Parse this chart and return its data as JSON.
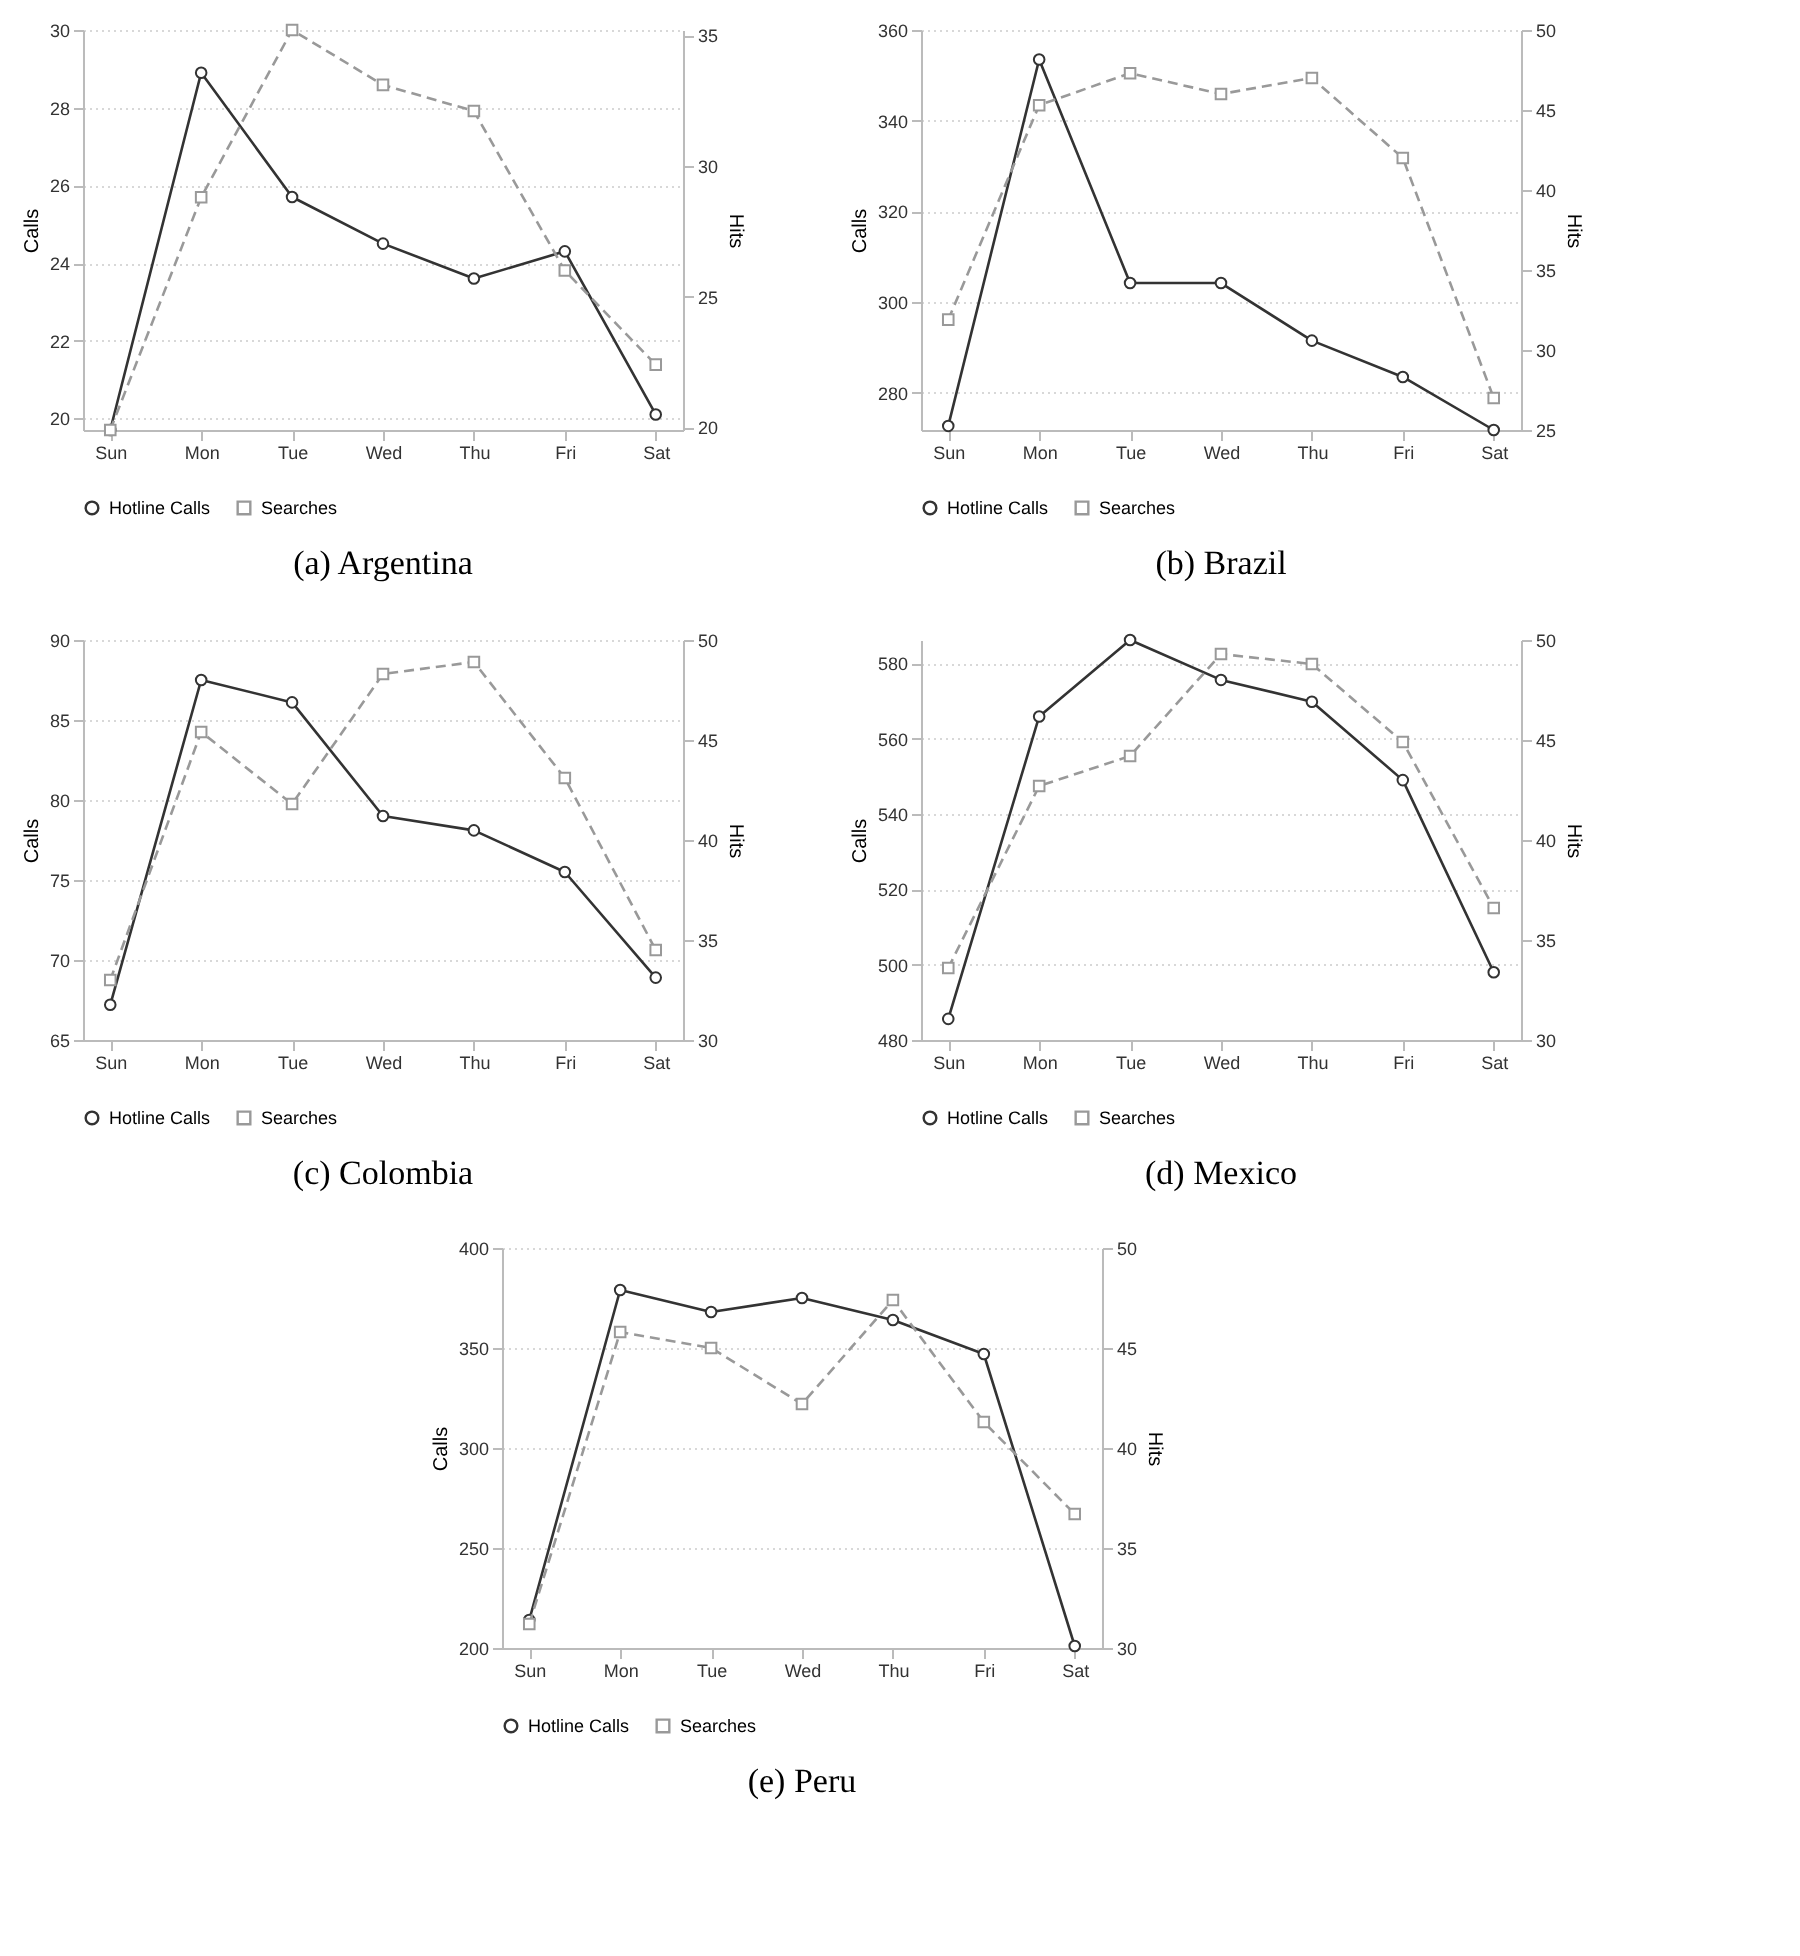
{
  "chart_data": [
    {
      "type": "line",
      "title": "(a) Argentina",
      "categories": [
        "Sun",
        "Mon",
        "Tue",
        "Wed",
        "Thu",
        "Fri",
        "Sat"
      ],
      "ylabel": "Calls",
      "y2label": "Hits",
      "ylim": [
        19.7,
        30
      ],
      "yticks": [
        20,
        22,
        24,
        26,
        28,
        30
      ],
      "y2lim": [
        19.9,
        35.2
      ],
      "y2ticks": [
        20,
        25,
        30,
        35
      ],
      "grid": "y",
      "legend": "bottom",
      "series": [
        {
          "name": "Hotline Calls",
          "color": "#333333",
          "marker": "circle",
          "line_style": "solid",
          "values": [
            19.7,
            28.9,
            25.7,
            24.5,
            23.6,
            24.3,
            20.1
          ]
        },
        {
          "name": "Searches",
          "color": "#999999",
          "marker": "square",
          "line_style": "dashed",
          "axis": "y2",
          "values": [
            19.9,
            28.8,
            35.2,
            33.1,
            32.1,
            26.0,
            22.4
          ]
        }
      ]
    },
    {
      "type": "line",
      "title": "(b) Brazil",
      "categories": [
        "Sun",
        "Mon",
        "Tue",
        "Wed",
        "Thu",
        "Fri",
        "Sat"
      ],
      "ylabel": "Calls",
      "y2label": "Hits",
      "ylim": [
        271.8,
        360
      ],
      "yticks": [
        280,
        300,
        320,
        340,
        360
      ],
      "y2lim": [
        25,
        50
      ],
      "y2ticks": [
        25,
        30,
        35,
        40,
        45,
        50
      ],
      "grid": "y",
      "legend": "bottom",
      "series": [
        {
          "name": "Hotline Calls",
          "color": "#333333",
          "marker": "circle",
          "line_style": "solid",
          "values": [
            272.7,
            353.5,
            304.2,
            304.2,
            291.5,
            283.5,
            271.8
          ]
        },
        {
          "name": "Searches",
          "color": "#999999",
          "marker": "square",
          "line_style": "dashed",
          "axis": "y2",
          "values": [
            31.9,
            45.3,
            47.3,
            46.0,
            47.0,
            42.0,
            27.0
          ]
        }
      ]
    },
    {
      "type": "line",
      "title": "(c) Colombia",
      "categories": [
        "Sun",
        "Mon",
        "Tue",
        "Wed",
        "Thu",
        "Fri",
        "Sat"
      ],
      "ylabel": "Calls",
      "y2label": "Hits",
      "ylim": [
        65,
        90
      ],
      "yticks": [
        65,
        70,
        75,
        80,
        85,
        90
      ],
      "y2lim": [
        30,
        50
      ],
      "y2ticks": [
        30,
        35,
        40,
        45,
        50
      ],
      "grid": "y",
      "legend": "bottom",
      "series": [
        {
          "name": "Hotline Calls",
          "color": "#333333",
          "marker": "circle",
          "line_style": "solid",
          "values": [
            67.2,
            87.5,
            86.1,
            79.0,
            78.1,
            75.5,
            68.9
          ]
        },
        {
          "name": "Searches",
          "color": "#999999",
          "marker": "square",
          "line_style": "dashed",
          "axis": "y2",
          "values": [
            33.0,
            45.4,
            41.8,
            48.3,
            48.9,
            43.1,
            34.5
          ]
        }
      ]
    },
    {
      "type": "line",
      "title": "(d) Mexico",
      "categories": [
        "Sun",
        "Mon",
        "Tue",
        "Wed",
        "Thu",
        "Fri",
        "Sat"
      ],
      "ylabel": "Calls",
      "y2label": "Hits",
      "ylim": [
        480,
        586.2
      ],
      "yticks": [
        480,
        500,
        520,
        540,
        560,
        580
      ],
      "y2lim": [
        30,
        50
      ],
      "y2ticks": [
        30,
        35,
        40,
        45,
        50
      ],
      "grid": "y",
      "legend": "bottom",
      "series": [
        {
          "name": "Hotline Calls",
          "color": "#333333",
          "marker": "circle",
          "line_style": "solid",
          "values": [
            485.6,
            565.9,
            586.2,
            575.6,
            569.8,
            549.0,
            498.0
          ]
        },
        {
          "name": "Searches",
          "color": "#999999",
          "marker": "square",
          "line_style": "dashed",
          "axis": "y2",
          "values": [
            33.6,
            42.7,
            44.2,
            49.3,
            48.8,
            44.9,
            36.6
          ]
        }
      ]
    },
    {
      "type": "line",
      "title": "(e) Peru",
      "categories": [
        "Sun",
        "Mon",
        "Tue",
        "Wed",
        "Thu",
        "Fri",
        "Sat"
      ],
      "ylabel": "Calls",
      "y2label": "Hits",
      "ylim": [
        200,
        400
      ],
      "yticks": [
        200,
        250,
        300,
        350,
        400
      ],
      "y2lim": [
        30,
        50
      ],
      "y2ticks": [
        30,
        35,
        40,
        45,
        50
      ],
      "grid": "y",
      "legend": "bottom",
      "series": [
        {
          "name": "Hotline Calls",
          "color": "#333333",
          "marker": "circle",
          "line_style": "solid",
          "values": [
            214,
            379,
            368,
            375,
            364,
            347,
            201
          ]
        },
        {
          "name": "Searches",
          "color": "#999999",
          "marker": "square",
          "line_style": "dashed",
          "axis": "y2",
          "values": [
            31.2,
            45.8,
            45.0,
            42.2,
            47.4,
            41.3,
            36.7
          ]
        }
      ]
    }
  ]
}
